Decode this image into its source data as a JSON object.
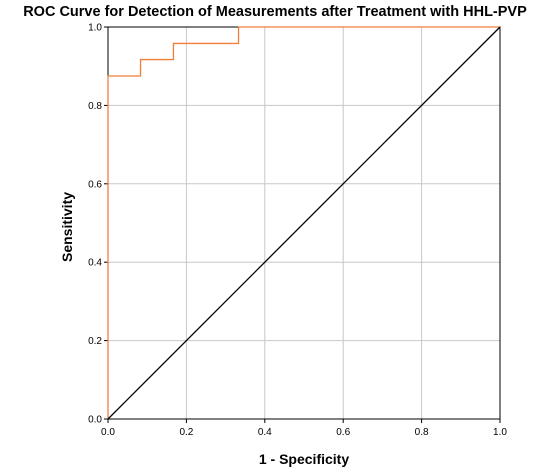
{
  "chart_data": {
    "type": "line",
    "title": "ROC Curve for Detection of Measurements after Treatment with HHL-PVP",
    "xlabel": "1 - Specificity",
    "ylabel": "Sensitivity",
    "xlim": [
      0.0,
      1.0
    ],
    "ylim": [
      0.0,
      1.0
    ],
    "xticks": [
      "0.0",
      "0.2",
      "0.4",
      "0.6",
      "0.8",
      "1.0"
    ],
    "yticks": [
      "0.0",
      "0.2",
      "0.4",
      "0.6",
      "0.8",
      "1.0"
    ],
    "grid": true,
    "legend": "none",
    "series": [
      {
        "color": "#f07f3c",
        "step": true,
        "x": [
          0.0,
          0.0,
          0.083,
          0.083,
          0.167,
          0.167,
          0.333,
          0.333,
          1.0
        ],
        "y": [
          0.0,
          0.875,
          0.875,
          0.917,
          0.917,
          0.958,
          0.958,
          1.0,
          1.0
        ]
      },
      {
        "color": "#000000",
        "x": [
          0.0,
          1.0
        ],
        "y": [
          0.0,
          1.0
        ]
      }
    ]
  }
}
